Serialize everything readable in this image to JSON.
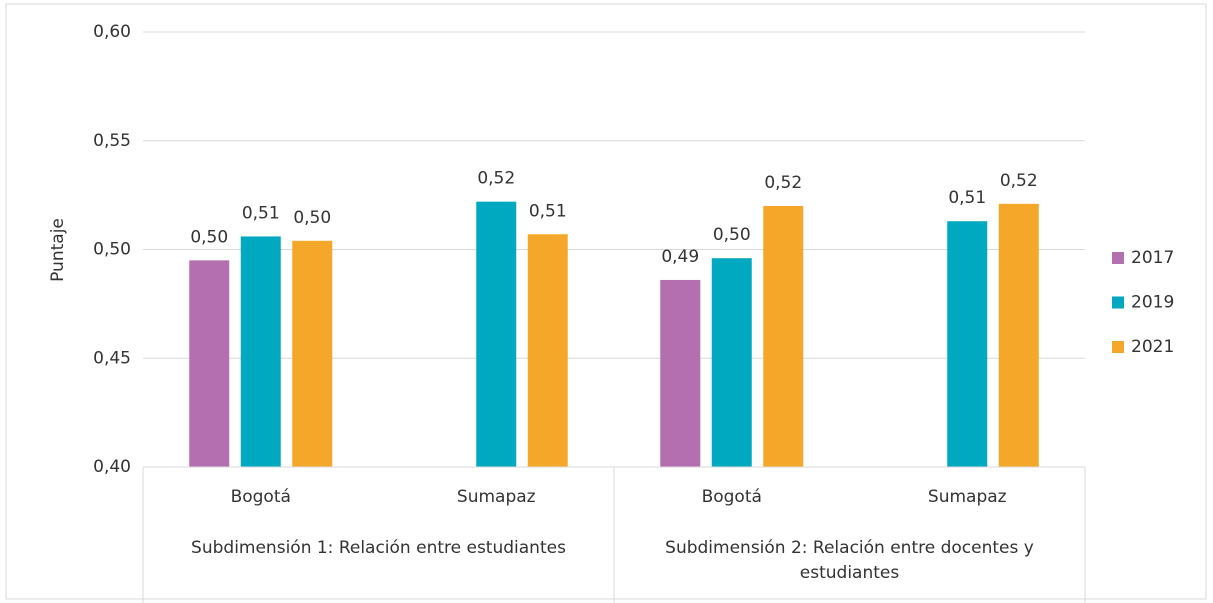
{
  "chart_data": {
    "type": "bar",
    "y_label": "Puntaje",
    "categories": [
      "Bogotá",
      "Sumapaz",
      "Bogotá",
      "Sumapaz"
    ],
    "groups": [
      {
        "label": "Subdimensión 1: Relación entre estudiantes",
        "span": 2
      },
      {
        "label": "Subdimensión 2: Relación entre docentes y estudiantes",
        "span": 2
      }
    ],
    "series": [
      {
        "name": "2017",
        "color": "#b36fb0",
        "values": [
          0.495,
          null,
          0.486,
          null
        ],
        "value_labels": [
          "0,50",
          null,
          "0,49",
          null
        ]
      },
      {
        "name": "2019",
        "color": "#00a9c0",
        "values": [
          0.506,
          0.522,
          0.496,
          0.513
        ],
        "value_labels": [
          "0,51",
          "0,52",
          "0,50",
          "0,51"
        ]
      },
      {
        "name": "2021",
        "color": "#f5a729",
        "values": [
          0.504,
          0.507,
          0.52,
          0.521
        ],
        "value_labels": [
          "0,50",
          "0,51",
          "0,52",
          "0,52"
        ]
      }
    ],
    "ylim": [
      0.4,
      0.6
    ],
    "yticks": [
      {
        "value": 0.4,
        "label": "0,40"
      },
      {
        "value": 0.45,
        "label": "0,45"
      },
      {
        "value": 0.5,
        "label": "0,50"
      },
      {
        "value": 0.55,
        "label": "0,55"
      },
      {
        "value": 0.6,
        "label": "0,60"
      }
    ],
    "grid": true,
    "legend": "right"
  }
}
